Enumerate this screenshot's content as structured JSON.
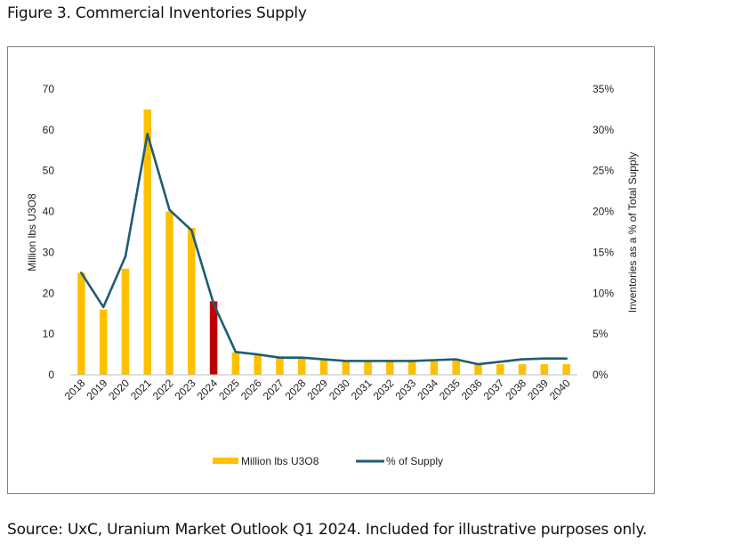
{
  "figure_title": "Figure 3. Commercial Inventories Supply",
  "source_note": "Source: UxC, Uranium Market Outlook Q1 2024. Included for illustrative purposes only.",
  "colors": {
    "bar": "#FFC000",
    "highlight_bar": "#C00000",
    "line": "#1F5C73",
    "frame": "#7F7F7F"
  },
  "chart_data": {
    "type": "bar",
    "title": "",
    "categories": [
      "2018",
      "2019",
      "2020",
      "2021",
      "2022",
      "2023",
      "2024",
      "2025",
      "2026",
      "2027",
      "2028",
      "2029",
      "2030",
      "2031",
      "2032",
      "2033",
      "2034",
      "2035",
      "2036",
      "2037",
      "2038",
      "2039",
      "2040"
    ],
    "highlight_category": "2024",
    "ylabel": "Million lbs U3O8",
    "y2label": "Inventories  as a % of Total  Supply",
    "ylim": [
      0,
      70
    ],
    "yticks": [
      0,
      10,
      20,
      30,
      40,
      50,
      60,
      70
    ],
    "y2lim": [
      0,
      35
    ],
    "y2ticks": [
      "0%",
      "5%",
      "10%",
      "15%",
      "20%",
      "25%",
      "30%",
      "35%"
    ],
    "series": [
      {
        "name": "Million lbs U3O8",
        "type": "bar",
        "axis": "left",
        "values": [
          25,
          16,
          26,
          65,
          40,
          36,
          18,
          5.5,
          4.8,
          4.3,
          4.3,
          3.8,
          3.6,
          3.6,
          3.6,
          3.6,
          3.7,
          3.8,
          2.5,
          2.6,
          2.6,
          2.6,
          2.6
        ]
      },
      {
        "name": "% of Supply",
        "type": "line",
        "axis": "right",
        "values": [
          12.5,
          8.3,
          14.5,
          29.5,
          20.2,
          17.7,
          8.7,
          2.8,
          2.5,
          2.1,
          2.1,
          1.9,
          1.7,
          1.7,
          1.7,
          1.7,
          1.8,
          1.9,
          1.3,
          1.6,
          1.9,
          2.0,
          2.0
        ]
      }
    ],
    "legend": {
      "position": "bottom",
      "items": [
        "Million lbs U3O8",
        "% of Supply"
      ]
    }
  }
}
